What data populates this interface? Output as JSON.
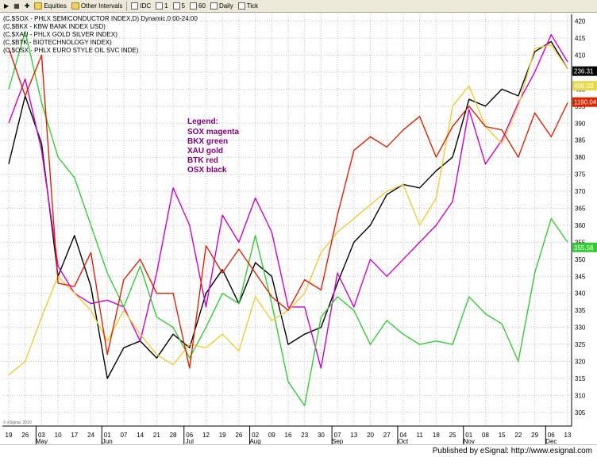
{
  "toolbar": {
    "items": [
      {
        "label": "Equities",
        "icon": "folder-icon"
      },
      {
        "label": "Other Intervals",
        "icon": "folder-icon"
      },
      {
        "label": "IDC",
        "icon": "checkbox"
      },
      {
        "label": "1",
        "icon": "checkbox"
      },
      {
        "label": "5",
        "icon": "checkbox"
      },
      {
        "label": "60",
        "icon": "checkbox"
      },
      {
        "label": "Daily",
        "icon": "checkbox"
      },
      {
        "label": "Tick",
        "icon": "checkbox"
      }
    ]
  },
  "footer": {
    "text": "Published by eSignal: http://www.esignal.com"
  },
  "watermark": "© eSignal, 2010",
  "chart_data": {
    "type": "line",
    "symbols": [
      "(C,$SOX - PHLX SEMICONDUCTOR INDEX,D) Dynamic,0:00-24:00",
      "(C,$BKX - KBW BANK INDEX USD)",
      "(C,$XAU - PHLX GOLD SILVER INDEX)",
      "(C,$BTK - BIOTECHNOLOGY INDEX)",
      "(C,$OSX - PHLX EURO STYLE OIL SVC INDE)"
    ],
    "annotation": {
      "title": "Legend:",
      "lines": [
        "SOX magenta",
        "BKX green",
        "XAU gold",
        "BTK red",
        "OSX black"
      ],
      "color": "#800080"
    },
    "x_ticks": [
      "19",
      "26",
      "03",
      "10",
      "17",
      "24",
      "01",
      "07",
      "14",
      "21",
      "28",
      "06",
      "12",
      "19",
      "26",
      "02",
      "09",
      "16",
      "23",
      "30",
      "07",
      "13",
      "20",
      "27",
      "04",
      "11",
      "18",
      "25",
      "01",
      "08",
      "15",
      "22",
      "29",
      "06",
      "13"
    ],
    "month_labels": [
      {
        "label": "May",
        "tick": 2
      },
      {
        "label": "Jun",
        "tick": 6
      },
      {
        "label": "Jul",
        "tick": 11
      },
      {
        "label": "Aug",
        "tick": 15
      },
      {
        "label": "Sep",
        "tick": 20
      },
      {
        "label": "Oct",
        "tick": 24
      },
      {
        "label": "Nov",
        "tick": 28
      },
      {
        "label": "Dec",
        "tick": 33
      }
    ],
    "y_ticks": [
      305,
      310,
      315,
      320,
      325,
      330,
      335,
      340,
      345,
      350,
      355,
      360,
      365,
      370,
      375,
      380,
      385,
      390,
      395,
      400,
      405,
      410,
      415,
      420
    ],
    "ylim": [
      301,
      422
    ],
    "grid": true,
    "last_value_badges": [
      {
        "text": "236.31",
        "bg": "#000000",
        "fg": "#ffffff",
        "y": 405.3
      },
      {
        "text": "406.03",
        "bg": "#e8d84a",
        "fg": "#ffffff",
        "y": 401.0
      },
      {
        "text": "1190.04",
        "bg": "#dd2200",
        "fg": "#ffffff",
        "y": 396.2
      },
      {
        "text": "355.58",
        "bg": "#33cc33",
        "fg": "#ffffff",
        "y": 353.5
      }
    ],
    "series": [
      {
        "color": "#000000",
        "values": [
          [
            0,
            378
          ],
          [
            1,
            398
          ],
          [
            2,
            384
          ],
          [
            3,
            345
          ],
          [
            4,
            357
          ],
          [
            5,
            342
          ],
          [
            6,
            315
          ],
          [
            7,
            324
          ],
          [
            8,
            326
          ],
          [
            9,
            321
          ],
          [
            10,
            328
          ],
          [
            11,
            324
          ],
          [
            12,
            340
          ],
          [
            13,
            347
          ],
          [
            14,
            337
          ],
          [
            15,
            349
          ],
          [
            16,
            345
          ],
          [
            17,
            325
          ],
          [
            18,
            328
          ],
          [
            19,
            330
          ],
          [
            20,
            343
          ],
          [
            21,
            355
          ],
          [
            22,
            360
          ],
          [
            23,
            369
          ],
          [
            24,
            372
          ],
          [
            25,
            371
          ],
          [
            26,
            376
          ],
          [
            27,
            380
          ],
          [
            28,
            397
          ],
          [
            29,
            395
          ],
          [
            30,
            400
          ],
          [
            31,
            398
          ],
          [
            32,
            411
          ],
          [
            33,
            414
          ],
          [
            34,
            406
          ]
        ],
        "offsets": [
          [
            0,
            0
          ],
          [
            0,
            0
          ],
          [
            0,
            0
          ],
          [
            0,
            0
          ],
          [
            0,
            0
          ],
          [
            0,
            0
          ],
          [
            0,
            0
          ],
          [
            0,
            0
          ],
          [
            0,
            0
          ],
          [
            0,
            0
          ],
          [
            0,
            0
          ],
          [
            0,
            0
          ],
          [
            0,
            0
          ],
          [
            0,
            0
          ],
          [
            0,
            0
          ],
          [
            0,
            0
          ],
          [
            0,
            0
          ],
          [
            0,
            0
          ],
          [
            0,
            0
          ],
          [
            0,
            0
          ],
          [
            0,
            0
          ],
          [
            0,
            0
          ],
          [
            0,
            0
          ],
          [
            0,
            0
          ],
          [
            0,
            0
          ],
          [
            0,
            0
          ],
          [
            0,
            0
          ],
          [
            0,
            0
          ],
          [
            0,
            0
          ],
          [
            0,
            0
          ],
          [
            0,
            0
          ],
          [
            0,
            0
          ],
          [
            0,
            0
          ],
          [
            0,
            0
          ],
          [
            0,
            0
          ]
        ]
      },
      {
        "color": "#cc00cc",
        "values": [
          [
            0,
            390
          ],
          [
            1,
            403
          ],
          [
            2,
            382
          ],
          [
            3,
            348
          ],
          [
            4,
            340
          ],
          [
            5,
            337
          ],
          [
            6,
            338
          ],
          [
            7,
            336
          ],
          [
            8,
            326
          ],
          [
            9,
            346
          ],
          [
            10,
            371
          ],
          [
            11,
            360
          ],
          [
            12,
            336
          ],
          [
            13,
            363
          ],
          [
            14,
            355
          ],
          [
            15,
            368
          ],
          [
            16,
            358
          ],
          [
            17,
            336
          ],
          [
            18,
            336
          ],
          [
            19,
            318
          ],
          [
            20,
            346
          ],
          [
            21,
            336
          ],
          [
            22,
            350
          ],
          [
            23,
            345
          ],
          [
            24,
            350
          ],
          [
            25,
            355
          ],
          [
            26,
            360
          ],
          [
            27,
            367
          ],
          [
            28,
            394
          ],
          [
            29,
            378
          ],
          [
            30,
            385
          ],
          [
            31,
            396
          ],
          [
            32,
            405
          ],
          [
            33,
            416
          ],
          [
            34,
            408
          ]
        ],
        "offsets": []
      },
      {
        "color": "#33cc33",
        "values": [
          [
            0,
            400
          ],
          [
            1,
            417
          ],
          [
            2,
            396
          ],
          [
            3,
            380
          ],
          [
            4,
            374
          ],
          [
            5,
            360
          ],
          [
            6,
            346
          ],
          [
            7,
            336
          ],
          [
            8,
            348
          ],
          [
            9,
            333
          ],
          [
            10,
            330
          ],
          [
            11,
            321
          ],
          [
            12,
            330
          ],
          [
            13,
            340
          ],
          [
            14,
            337
          ],
          [
            15,
            357
          ],
          [
            16,
            337
          ],
          [
            17,
            314
          ],
          [
            18,
            307
          ],
          [
            19,
            333
          ],
          [
            20,
            339
          ],
          [
            21,
            335
          ],
          [
            22,
            325
          ],
          [
            23,
            332
          ],
          [
            24,
            328
          ],
          [
            25,
            325
          ],
          [
            26,
            326
          ],
          [
            27,
            325
          ],
          [
            28,
            339
          ],
          [
            29,
            334
          ],
          [
            30,
            331
          ],
          [
            31,
            320
          ],
          [
            32,
            346
          ],
          [
            33,
            362
          ],
          [
            34,
            355
          ]
        ],
        "offsets": []
      },
      {
        "color": "#eecc33",
        "values": [
          [
            0,
            316
          ],
          [
            1,
            320
          ],
          [
            2,
            333
          ],
          [
            3,
            345
          ],
          [
            4,
            340
          ],
          [
            5,
            335
          ],
          [
            6,
            326
          ],
          [
            7,
            335
          ],
          [
            8,
            328
          ],
          [
            9,
            322
          ],
          [
            10,
            319
          ],
          [
            11,
            325
          ],
          [
            12,
            324
          ],
          [
            13,
            328
          ],
          [
            14,
            323
          ],
          [
            15,
            339
          ],
          [
            16,
            332
          ],
          [
            17,
            335
          ],
          [
            18,
            340
          ],
          [
            19,
            352
          ],
          [
            20,
            358
          ],
          [
            21,
            362
          ],
          [
            22,
            366
          ],
          [
            23,
            370
          ],
          [
            24,
            372
          ],
          [
            25,
            360
          ],
          [
            26,
            368
          ],
          [
            27,
            395
          ],
          [
            28,
            401
          ],
          [
            29,
            389
          ],
          [
            30,
            384
          ],
          [
            31,
            395
          ],
          [
            32,
            412
          ],
          [
            33,
            413
          ],
          [
            34,
            406
          ]
        ],
        "offsets": []
      },
      {
        "color": "#dd2200",
        "values": [
          [
            0,
            412
          ],
          [
            1,
            398
          ],
          [
            2,
            410
          ],
          [
            3,
            343
          ],
          [
            4,
            342
          ],
          [
            5,
            352
          ],
          [
            6,
            322
          ],
          [
            7,
            344
          ],
          [
            8,
            350
          ],
          [
            9,
            340
          ],
          [
            10,
            340
          ],
          [
            11,
            318
          ],
          [
            12,
            354
          ],
          [
            13,
            346
          ],
          [
            14,
            353
          ],
          [
            15,
            346
          ],
          [
            16,
            339
          ],
          [
            17,
            335
          ],
          [
            18,
            344
          ],
          [
            19,
            341
          ],
          [
            20,
            363
          ],
          [
            21,
            382
          ],
          [
            22,
            386
          ],
          [
            23,
            383
          ],
          [
            24,
            388
          ],
          [
            25,
            392
          ],
          [
            26,
            380
          ],
          [
            27,
            389
          ],
          [
            28,
            395
          ],
          [
            29,
            389
          ],
          [
            30,
            388
          ],
          [
            31,
            380
          ],
          [
            32,
            393
          ],
          [
            33,
            386
          ],
          [
            34,
            396
          ]
        ],
        "offsets": []
      }
    ]
  }
}
